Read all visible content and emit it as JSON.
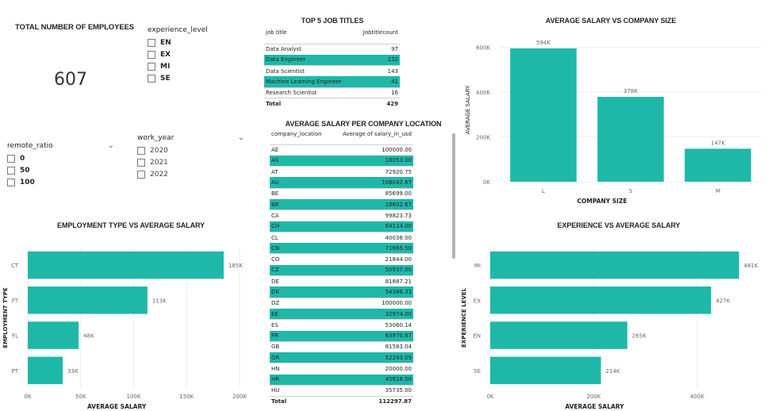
{
  "kpi": {
    "title": "TOTAL NUMBER OF EMPLOYEES",
    "value": "607"
  },
  "experience_slicer": {
    "title": "experience_level",
    "items": [
      "EN",
      "EX",
      "MI",
      "SE"
    ]
  },
  "remote_slicer": {
    "title": "remote_ratio",
    "items": [
      "0",
      "50",
      "100"
    ]
  },
  "work_year_slicer": {
    "title": "work_year",
    "items": [
      "2020",
      "2021",
      "2022"
    ]
  },
  "top5": {
    "title": "TOP 5 JOB TITLES",
    "col1": "job title",
    "col2": "Jobtitlecount",
    "rows": [
      {
        "label": "Data Analyst",
        "value": "97"
      },
      {
        "label": "Data Engineer",
        "value": "132"
      },
      {
        "label": "Data Scientist",
        "value": "143"
      },
      {
        "label": "Machine Learning Engineer",
        "value": "41"
      },
      {
        "label": "Research Scientist",
        "value": "16"
      }
    ],
    "total_label": "Total",
    "total_value": "429"
  },
  "location_table": {
    "title": "AVERAGE SALARY PER COMPANY LOCATION",
    "col1": "company_location",
    "col2": "Average of salary_in_usd",
    "rows": [
      {
        "label": "AE",
        "value": "100000.00"
      },
      {
        "label": "AS",
        "value": "18053.00"
      },
      {
        "label": "AT",
        "value": "72920.75"
      },
      {
        "label": "AU",
        "value": "108042.67"
      },
      {
        "label": "BE",
        "value": "85699.00"
      },
      {
        "label": "BR",
        "value": "18602.67"
      },
      {
        "label": "CA",
        "value": "99823.73"
      },
      {
        "label": "CH",
        "value": "64114.00"
      },
      {
        "label": "CL",
        "value": "40038.00"
      },
      {
        "label": "CN",
        "value": "71665.50"
      },
      {
        "label": "CO",
        "value": "21844.00"
      },
      {
        "label": "CZ",
        "value": "50937.00"
      },
      {
        "label": "DE",
        "value": "81887.21"
      },
      {
        "label": "DK",
        "value": "54386.33"
      },
      {
        "label": "DZ",
        "value": "100000.00"
      },
      {
        "label": "EE",
        "value": "32974.00"
      },
      {
        "label": "ES",
        "value": "53060.14"
      },
      {
        "label": "FR",
        "value": "63970.67"
      },
      {
        "label": "GB",
        "value": "81583.04"
      },
      {
        "label": "GR",
        "value": "52293.09"
      },
      {
        "label": "HN",
        "value": "20000.00"
      },
      {
        "label": "HR",
        "value": "45618.00"
      },
      {
        "label": "HU",
        "value": "35735.00"
      }
    ],
    "total_label": "Total",
    "total_value": "112297.87"
  },
  "chart_data": [
    {
      "id": "company_size",
      "type": "bar",
      "title": "AVERAGE SALARY VS COMPANY SIZE",
      "xlabel": "COMPANY SIZE",
      "ylabel": "AVERAGE SALARY",
      "categories": [
        "L",
        "S",
        "M"
      ],
      "values": [
        594000,
        378000,
        147000
      ],
      "data_labels": [
        "594K",
        "378K",
        "147K"
      ],
      "yticks": [
        0,
        200000,
        400000,
        600000
      ],
      "ytick_labels": [
        "0K",
        "200K",
        "400K",
        "600K"
      ],
      "ylim": [
        0,
        640000
      ],
      "color": "#1fb8a8"
    },
    {
      "id": "employment_type",
      "type": "bar",
      "orientation": "horizontal",
      "title": "EMPLOYMENT TYPE VS AVERAGE SALARY",
      "xlabel": "AVERAGE SALARY",
      "ylabel": "EMPLOYMENT TYPE",
      "categories": [
        "CT",
        "FT",
        "FL",
        "PT"
      ],
      "values": [
        185000,
        113000,
        48000,
        33000
      ],
      "data_labels": [
        "185K",
        "113K",
        "48K",
        "33K"
      ],
      "xticks": [
        0,
        50000,
        100000,
        150000,
        200000
      ],
      "xtick_labels": [
        "0K",
        "50K",
        "100K",
        "150K",
        "200K"
      ],
      "xlim": [
        0,
        200000
      ],
      "color": "#1fb8a8"
    },
    {
      "id": "experience",
      "type": "bar",
      "orientation": "horizontal",
      "title": "EXPERIENCE VS AVERAGE SALARY",
      "xlabel": "AVERAGE SALARY",
      "ylabel": "EXPERIENCE LEVEL",
      "categories": [
        "MI",
        "EX",
        "EN",
        "SE"
      ],
      "values": [
        481000,
        427000,
        265000,
        214000
      ],
      "data_labels": [
        "481K",
        "427K",
        "265K",
        "214K"
      ],
      "xticks": [
        0,
        200000,
        400000
      ],
      "xtick_labels": [
        "0K",
        "200K",
        "400K"
      ],
      "xlim": [
        0,
        480000
      ],
      "color": "#1fb8a8"
    }
  ]
}
